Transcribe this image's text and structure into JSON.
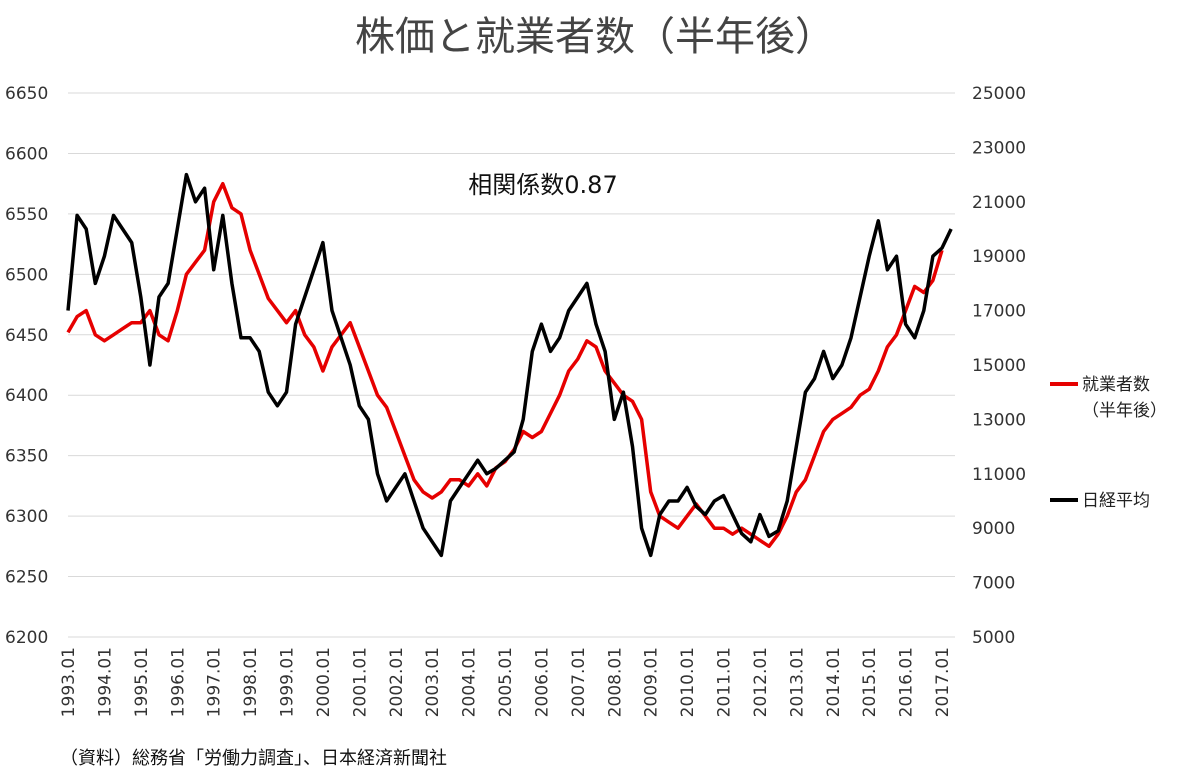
{
  "chart_data": {
    "type": "line",
    "title": "株価と就業者数（半年後）",
    "annotation": "相関係数0.87",
    "source": "（資料）総務省「労働力調査」、日本経済新聞社",
    "categories": [
      "1993.01",
      null,
      null,
      null,
      "1994.01",
      null,
      null,
      null,
      "1995.01",
      null,
      null,
      null,
      "1996.01",
      null,
      null,
      null,
      "1997.01",
      null,
      null,
      null,
      "1998.01",
      null,
      null,
      null,
      "1999.01",
      null,
      null,
      null,
      "2000.01",
      null,
      null,
      null,
      "2001.01",
      null,
      null,
      null,
      "2002.01",
      null,
      null,
      null,
      "2003.01",
      null,
      null,
      null,
      "2004.01",
      null,
      null,
      null,
      "2005.01",
      null,
      null,
      null,
      "2006.01",
      null,
      null,
      null,
      "2007.01",
      null,
      null,
      null,
      "2008.01",
      null,
      null,
      null,
      "2009.01",
      null,
      null,
      null,
      "2010.01",
      null,
      null,
      null,
      "2011.01",
      null,
      null,
      null,
      "2012.01",
      null,
      null,
      null,
      "2013.01",
      null,
      null,
      null,
      "2014.01",
      null,
      null,
      null,
      "2015.01",
      null,
      null,
      null,
      "2016.01",
      null,
      null,
      null,
      "2017.01",
      null
    ],
    "series": [
      {
        "name": "就業者数（半年後）",
        "color": "#e60000",
        "axis": "y",
        "values": [
          6452,
          6465,
          6470,
          6450,
          6445,
          6450,
          6455,
          6460,
          6460,
          6470,
          6450,
          6445,
          6470,
          6500,
          6510,
          6520,
          6560,
          6575,
          6555,
          6550,
          6520,
          6500,
          6480,
          6470,
          6460,
          6470,
          6450,
          6440,
          6420,
          6440,
          6450,
          6460,
          6440,
          6420,
          6400,
          6390,
          6370,
          6350,
          6330,
          6320,
          6315,
          6320,
          6330,
          6330,
          6325,
          6335,
          6325,
          6340,
          6345,
          6355,
          6370,
          6365,
          6370,
          6385,
          6400,
          6420,
          6430,
          6445,
          6440,
          6420,
          6410,
          6400,
          6395,
          6380,
          6320,
          6300,
          6295,
          6290,
          6300,
          6310,
          6300,
          6290,
          6290,
          6285,
          6290,
          6285,
          6280,
          6275,
          6285,
          6300,
          6320,
          6330,
          6350,
          6370,
          6380,
          6385,
          6390,
          6400,
          6405,
          6420,
          6440,
          6450,
          6470,
          6490,
          6485,
          6495,
          6520,
          null
        ]
      },
      {
        "name": "日経平均",
        "color": "#000000",
        "axis": "y2",
        "values": [
          17000,
          20500,
          20000,
          18000,
          19000,
          20500,
          20000,
          19500,
          17500,
          15000,
          17500,
          18000,
          20000,
          22000,
          21000,
          21500,
          18500,
          20500,
          18000,
          16000,
          16000,
          15500,
          14000,
          13500,
          14000,
          16500,
          17500,
          18500,
          19500,
          17000,
          16000,
          15000,
          13500,
          13000,
          11000,
          10000,
          10500,
          11000,
          10000,
          9000,
          8500,
          8000,
          10000,
          10500,
          11000,
          11500,
          11000,
          11200,
          11500,
          11800,
          13000,
          15500,
          16500,
          15500,
          16000,
          17000,
          17500,
          18000,
          16500,
          15500,
          13000,
          14000,
          12000,
          9000,
          8000,
          9500,
          10000,
          10000,
          10500,
          9800,
          9500,
          10000,
          10200,
          9500,
          8800,
          8500,
          9500,
          8700,
          8900,
          10000,
          12000,
          14000,
          14500,
          15500,
          14500,
          15000,
          16000,
          17500,
          19000,
          20300,
          18500,
          19000,
          16500,
          16000,
          17000,
          19000,
          19300,
          20000
        ]
      }
    ],
    "ylim": [
      6200,
      6650
    ],
    "yticks": [
      6200,
      6250,
      6300,
      6350,
      6400,
      6450,
      6500,
      6550,
      6600,
      6650
    ],
    "y2lim": [
      5000,
      25000
    ],
    "y2ticks": [
      5000,
      7000,
      9000,
      11000,
      13000,
      15000,
      17000,
      19000,
      21000,
      23000,
      25000
    ],
    "grid": true,
    "legend": "right"
  }
}
